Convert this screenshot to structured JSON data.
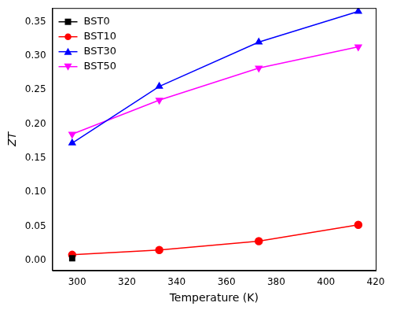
{
  "chart_data": {
    "type": "line",
    "x_label": "Temperature (K)",
    "y_label": "ZT",
    "x": [
      298,
      333,
      373,
      413
    ],
    "series": [
      {
        "name": "BST0",
        "color": "#000000",
        "marker": "square",
        "values": [
          0.003,
          null,
          null,
          null
        ]
      },
      {
        "name": "BST10",
        "color": "#ff0000",
        "marker": "circle",
        "values": [
          0.008,
          0.015,
          0.028,
          0.052
        ]
      },
      {
        "name": "BST30",
        "color": "#0000ff",
        "marker": "triangle",
        "values": [
          0.172,
          0.255,
          0.32,
          0.365
        ]
      },
      {
        "name": "BST50",
        "color": "#ff00ff",
        "marker": "triangle_down",
        "values": [
          0.185,
          0.235,
          0.282,
          0.313
        ]
      }
    ],
    "xlim": [
      290,
      420
    ],
    "xticks": [
      300,
      320,
      340,
      360,
      380,
      400,
      420
    ],
    "ylim": [
      -0.015,
      0.37
    ],
    "yticks": [
      {
        "value": 0,
        "label": "0.00"
      },
      {
        "value": 0.05,
        "label": "0.05"
      },
      {
        "value": 0.1,
        "label": "0.10"
      },
      {
        "value": 0.15,
        "label": "0.15"
      },
      {
        "value": 0.2,
        "label": "0.20"
      },
      {
        "value": 0.25,
        "label": "0.25"
      },
      {
        "value": 0.3,
        "label": "0.30"
      },
      {
        "value": 0.35,
        "label": "0.35"
      }
    ],
    "grid": false,
    "legend": "upper left"
  }
}
